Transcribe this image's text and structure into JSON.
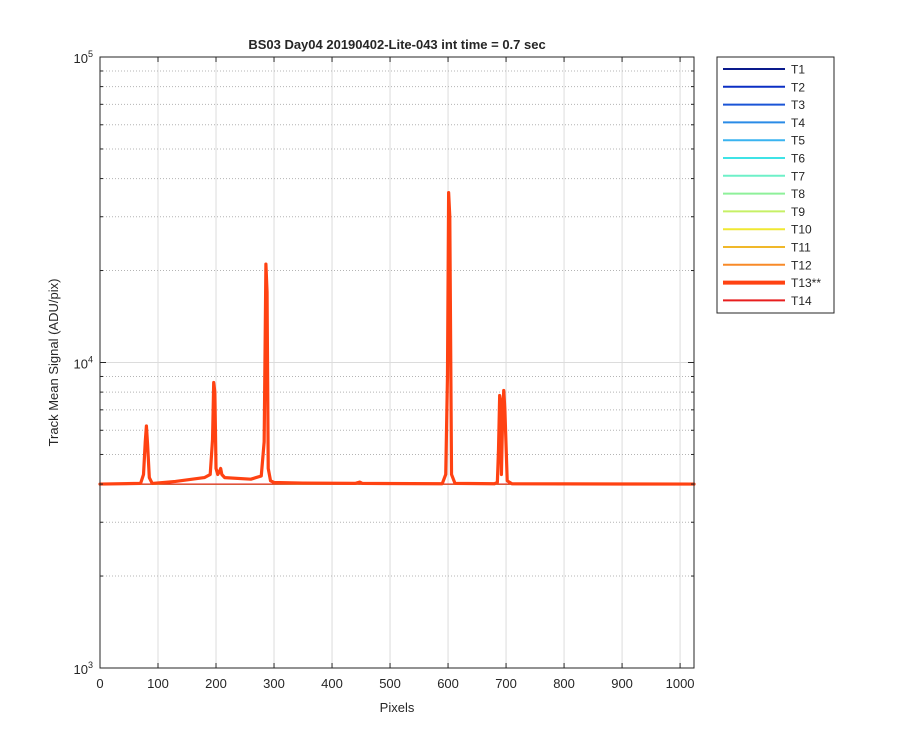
{
  "chart_data": {
    "type": "line",
    "title": "BS03 Day04 20190402-Lite-043 int time = 0.7 sec",
    "xlabel": "Pixels",
    "ylabel": "Track Mean Signal (ADU/pix)",
    "xlim": [
      0,
      1024
    ],
    "ylim": [
      1000,
      100000
    ],
    "yscale": "log",
    "grid": true,
    "x_ticks": [
      0,
      100,
      200,
      300,
      400,
      500,
      600,
      700,
      800,
      900,
      1000
    ],
    "x_tick_labels": [
      "0",
      "100",
      "200",
      "300",
      "400",
      "500",
      "600",
      "700",
      "800",
      "900",
      "1000"
    ],
    "y_ticks": [
      {
        "value": 1000,
        "base": "10",
        "exp": "3"
      },
      {
        "value": 10000,
        "base": "10",
        "exp": "4"
      },
      {
        "value": 100000,
        "base": "10",
        "exp": "5"
      }
    ],
    "legend_placement": "outside-right",
    "series": [
      {
        "name": "T1",
        "color": "#0a1a8c",
        "highlight": false,
        "x": [
          0,
          1024
        ],
        "y": [
          4000,
          4000
        ]
      },
      {
        "name": "T2",
        "color": "#0b2fc4",
        "highlight": false,
        "x": [
          0,
          1024
        ],
        "y": [
          4000,
          4000
        ]
      },
      {
        "name": "T3",
        "color": "#1a55d6",
        "highlight": false,
        "x": [
          0,
          1024
        ],
        "y": [
          4000,
          4000
        ]
      },
      {
        "name": "T4",
        "color": "#2a8be6",
        "highlight": false,
        "x": [
          0,
          1024
        ],
        "y": [
          4000,
          4000
        ]
      },
      {
        "name": "T5",
        "color": "#3ab4f0",
        "highlight": false,
        "x": [
          0,
          1024
        ],
        "y": [
          4000,
          4000
        ]
      },
      {
        "name": "T6",
        "color": "#3fe3e6",
        "highlight": false,
        "x": [
          0,
          1024
        ],
        "y": [
          4000,
          4000
        ]
      },
      {
        "name": "T7",
        "color": "#6ef0c8",
        "highlight": false,
        "x": [
          0,
          1024
        ],
        "y": [
          4000,
          4000
        ]
      },
      {
        "name": "T8",
        "color": "#8ef09a",
        "highlight": false,
        "x": [
          0,
          1024
        ],
        "y": [
          4000,
          4000
        ]
      },
      {
        "name": "T9",
        "color": "#c6f066",
        "highlight": false,
        "x": [
          0,
          1024
        ],
        "y": [
          4000,
          4000
        ]
      },
      {
        "name": "T10",
        "color": "#f0e832",
        "highlight": false,
        "x": [
          0,
          1024
        ],
        "y": [
          4000,
          4000
        ]
      },
      {
        "name": "T11",
        "color": "#f0b82a",
        "highlight": false,
        "x": [
          0,
          1024
        ],
        "y": [
          4000,
          4000
        ]
      },
      {
        "name": "T12",
        "color": "#f88a28",
        "highlight": false,
        "x": [
          0,
          1024
        ],
        "y": [
          4000,
          4000
        ]
      },
      {
        "name": "T13**",
        "color": "#ff4212",
        "highlight": true,
        "x": [
          0,
          70,
          75,
          78,
          80,
          82,
          85,
          90,
          130,
          180,
          190,
          194,
          196,
          198,
          200,
          203,
          206,
          208,
          210,
          215,
          260,
          278,
          283,
          286,
          288,
          290,
          294,
          300,
          350,
          440,
          448,
          452,
          590,
          596,
          599,
          601,
          603,
          606,
          612,
          680,
          685,
          687,
          689,
          690,
          692,
          694,
          696,
          698,
          702,
          710,
          800,
          900,
          1024
        ],
        "y": [
          4000,
          4020,
          4300,
          5500,
          6200,
          5400,
          4200,
          4020,
          4080,
          4200,
          4300,
          5600,
          8600,
          8000,
          4500,
          4300,
          4400,
          4500,
          4300,
          4200,
          4150,
          4250,
          5500,
          21000,
          17000,
          4500,
          4100,
          4050,
          4030,
          4020,
          4060,
          4020,
          4010,
          4300,
          9000,
          36000,
          30000,
          4300,
          4020,
          4010,
          4050,
          5200,
          7800,
          7600,
          4300,
          6500,
          8100,
          7000,
          4100,
          4010,
          4005,
          4003,
          4000
        ]
      },
      {
        "name": "T14",
        "color": "#e81e1e",
        "highlight": false,
        "x": [
          0,
          1024
        ],
        "y": [
          4000,
          4000
        ]
      }
    ]
  }
}
